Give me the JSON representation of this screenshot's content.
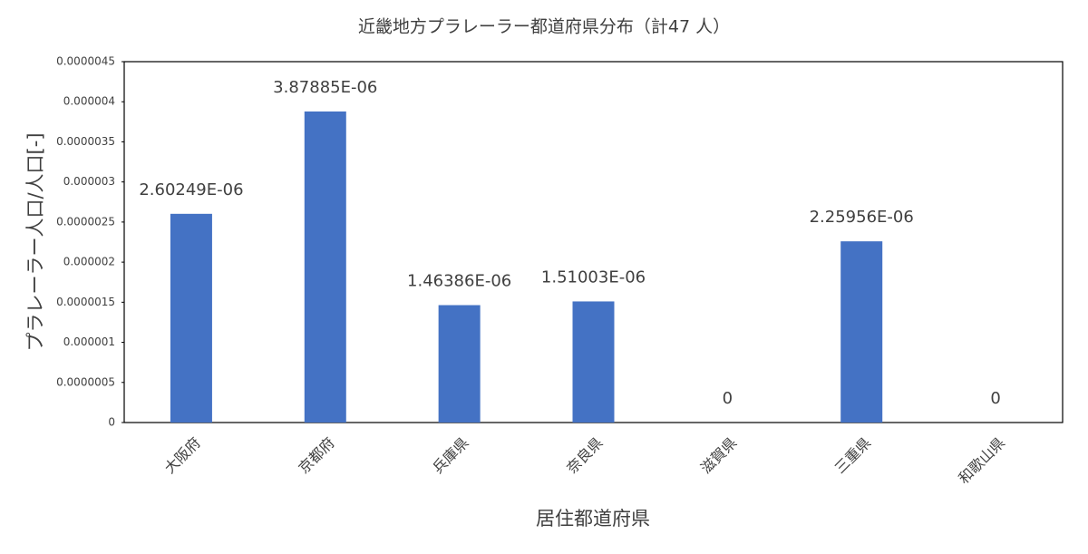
{
  "chart_data": {
    "type": "bar",
    "title": "近畿地方プラレーラー都道府県分布（計47 人）",
    "x_label": "居住都道府県",
    "y_label": "プラレーラー人口/人口[-]",
    "categories": [
      "大阪府",
      "京都府",
      "兵庫県",
      "奈良県",
      "滋賀県",
      "三重県",
      "和歌山県"
    ],
    "values": [
      2.60249e-06,
      3.87885e-06,
      1.46386e-06,
      1.51003e-06,
      0,
      2.25956e-06,
      0
    ],
    "value_labels": [
      "2.60249E-06",
      "3.87885E-06",
      "1.46386E-06",
      "1.51003E-06",
      "0",
      "2.25956E-06",
      "0"
    ],
    "color": "#4472c4",
    "ylim": [
      0,
      4.5e-06
    ],
    "yticks": [
      0,
      {
        "value": 5e-07,
        "label": "0.0000005"
      },
      {
        "value": 1e-06,
        "label": "0.000001"
      },
      {
        "value": 1.5e-06,
        "label": "0.0000015"
      },
      {
        "value": 2e-06,
        "label": "0.000002"
      },
      {
        "value": 2.5e-06,
        "label": "0.0000025"
      },
      {
        "value": 3e-06,
        "label": "0.000003"
      },
      {
        "value": 3.5e-06,
        "label": "0.0000035"
      },
      {
        "value": 4e-06,
        "label": "0.000004"
      },
      {
        "value": 4.5e-06,
        "label": "0.0000045"
      }
    ],
    "grid": false
  }
}
